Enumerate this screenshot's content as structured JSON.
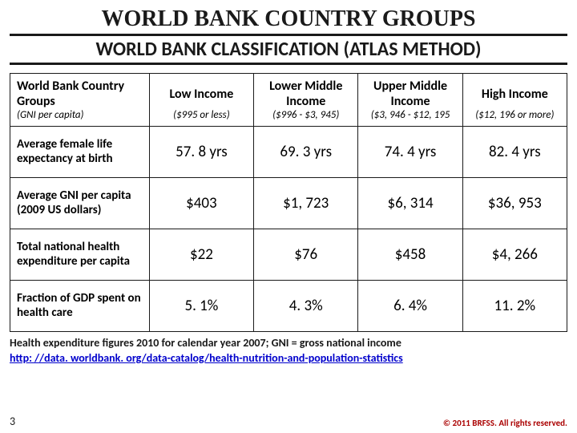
{
  "title": "WORLD BANK COUNTRY GROUPS",
  "subtitle": "WORLD BANK CLASSIFICATION (ATLAS METHOD)",
  "table": {
    "row_header_title": "World Bank Country Groups",
    "row_header_sub": "(GNI per capita)",
    "columns": [
      {
        "label": "Low Income",
        "sub": "($995 or less)"
      },
      {
        "label": "Lower Middle Income",
        "sub": "($996 - $3, 945)"
      },
      {
        "label": "Upper Middle Income",
        "sub": "($3, 946 - $12, 195"
      },
      {
        "label": "High Income",
        "sub": "($12, 196 or more)"
      }
    ],
    "rows": [
      {
        "label": "Average female life expectancy at birth",
        "cells": [
          "57. 8 yrs",
          "69. 3 yrs",
          "74. 4 yrs",
          "82. 4 yrs"
        ]
      },
      {
        "label": "Average GNI per capita (2009 US dollars)",
        "cells": [
          "$403",
          "$1, 723",
          "$6, 314",
          "$36, 953"
        ]
      },
      {
        "label": "Total national health expenditure per capita",
        "cells": [
          "$22",
          "$76",
          "$458",
          "$4, 266"
        ]
      },
      {
        "label": "Fraction of GDP spent on health care",
        "cells": [
          "5. 1%",
          "4. 3%",
          "6. 4%",
          "11. 2%"
        ]
      }
    ]
  },
  "footnote": "Health expenditure figures 2010 for calendar year 2007; GNI = gross national income",
  "source_link": "http: //data. worldbank. org/data-catalog/health-nutrition-and-population-statistics",
  "page_number": "3",
  "copyright": "© 2011 BRFSS. All rights reserved.",
  "styling": {
    "title_font": "Georgia serif",
    "title_fontsize_pt": 21,
    "subtitle_fontsize_pt": 18,
    "cell_fontsize_pt": 14,
    "rowlabel_fontsize_pt": 11,
    "border_color": "#1a1a1a",
    "link_color": "#0000cc",
    "copyright_color": "#aa0000",
    "background_color": "#ffffff",
    "column_widths_pct": [
      25,
      18.75,
      18.75,
      18.75,
      18.75
    ]
  }
}
